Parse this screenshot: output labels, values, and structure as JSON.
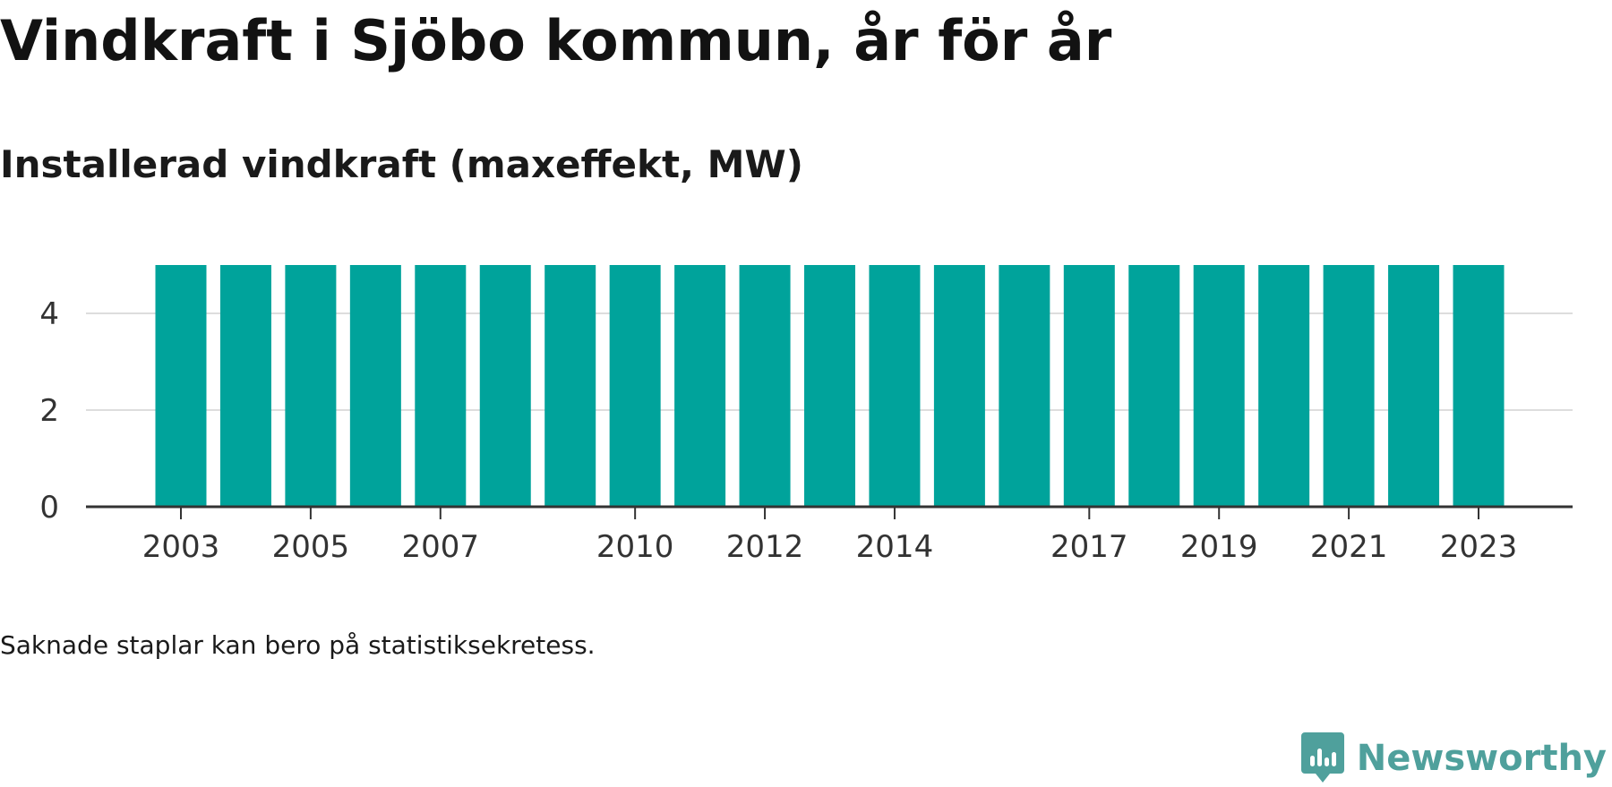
{
  "title": "Vindkraft i Sjöbo kommun, år för år",
  "subtitle": "Installerad vindkraft (maxeffekt, MW)",
  "footnote": "Saknade staplar kan bero på statistiksekretess.",
  "brand": {
    "name": "Newsworthy",
    "icon": "newsworthy-logo-icon",
    "color": "#4fa09c"
  },
  "colors": {
    "bar": "#00a39b",
    "gridline": "#dddddd",
    "axis": "#333333"
  },
  "chart_data": {
    "type": "bar",
    "categories": [
      "2003",
      "2004",
      "2005",
      "2006",
      "2007",
      "2008",
      "2009",
      "2010",
      "2011",
      "2012",
      "2013",
      "2014",
      "2015",
      "2016",
      "2017",
      "2018",
      "2019",
      "2020",
      "2021",
      "2022",
      "2023"
    ],
    "values": [
      5,
      5,
      5,
      5,
      5,
      5,
      5,
      5,
      5,
      5,
      5,
      5,
      5,
      5,
      5,
      5,
      5,
      5,
      5,
      5,
      5
    ],
    "x_tick_labels": [
      "2003",
      "2005",
      "2007",
      "2010",
      "2012",
      "2014",
      "2017",
      "2019",
      "2021",
      "2023"
    ],
    "y_ticks": [
      0,
      2,
      4
    ],
    "ylim": [
      0,
      5
    ],
    "xlabel": "",
    "ylabel": "",
    "grid": true,
    "legend": "none"
  }
}
